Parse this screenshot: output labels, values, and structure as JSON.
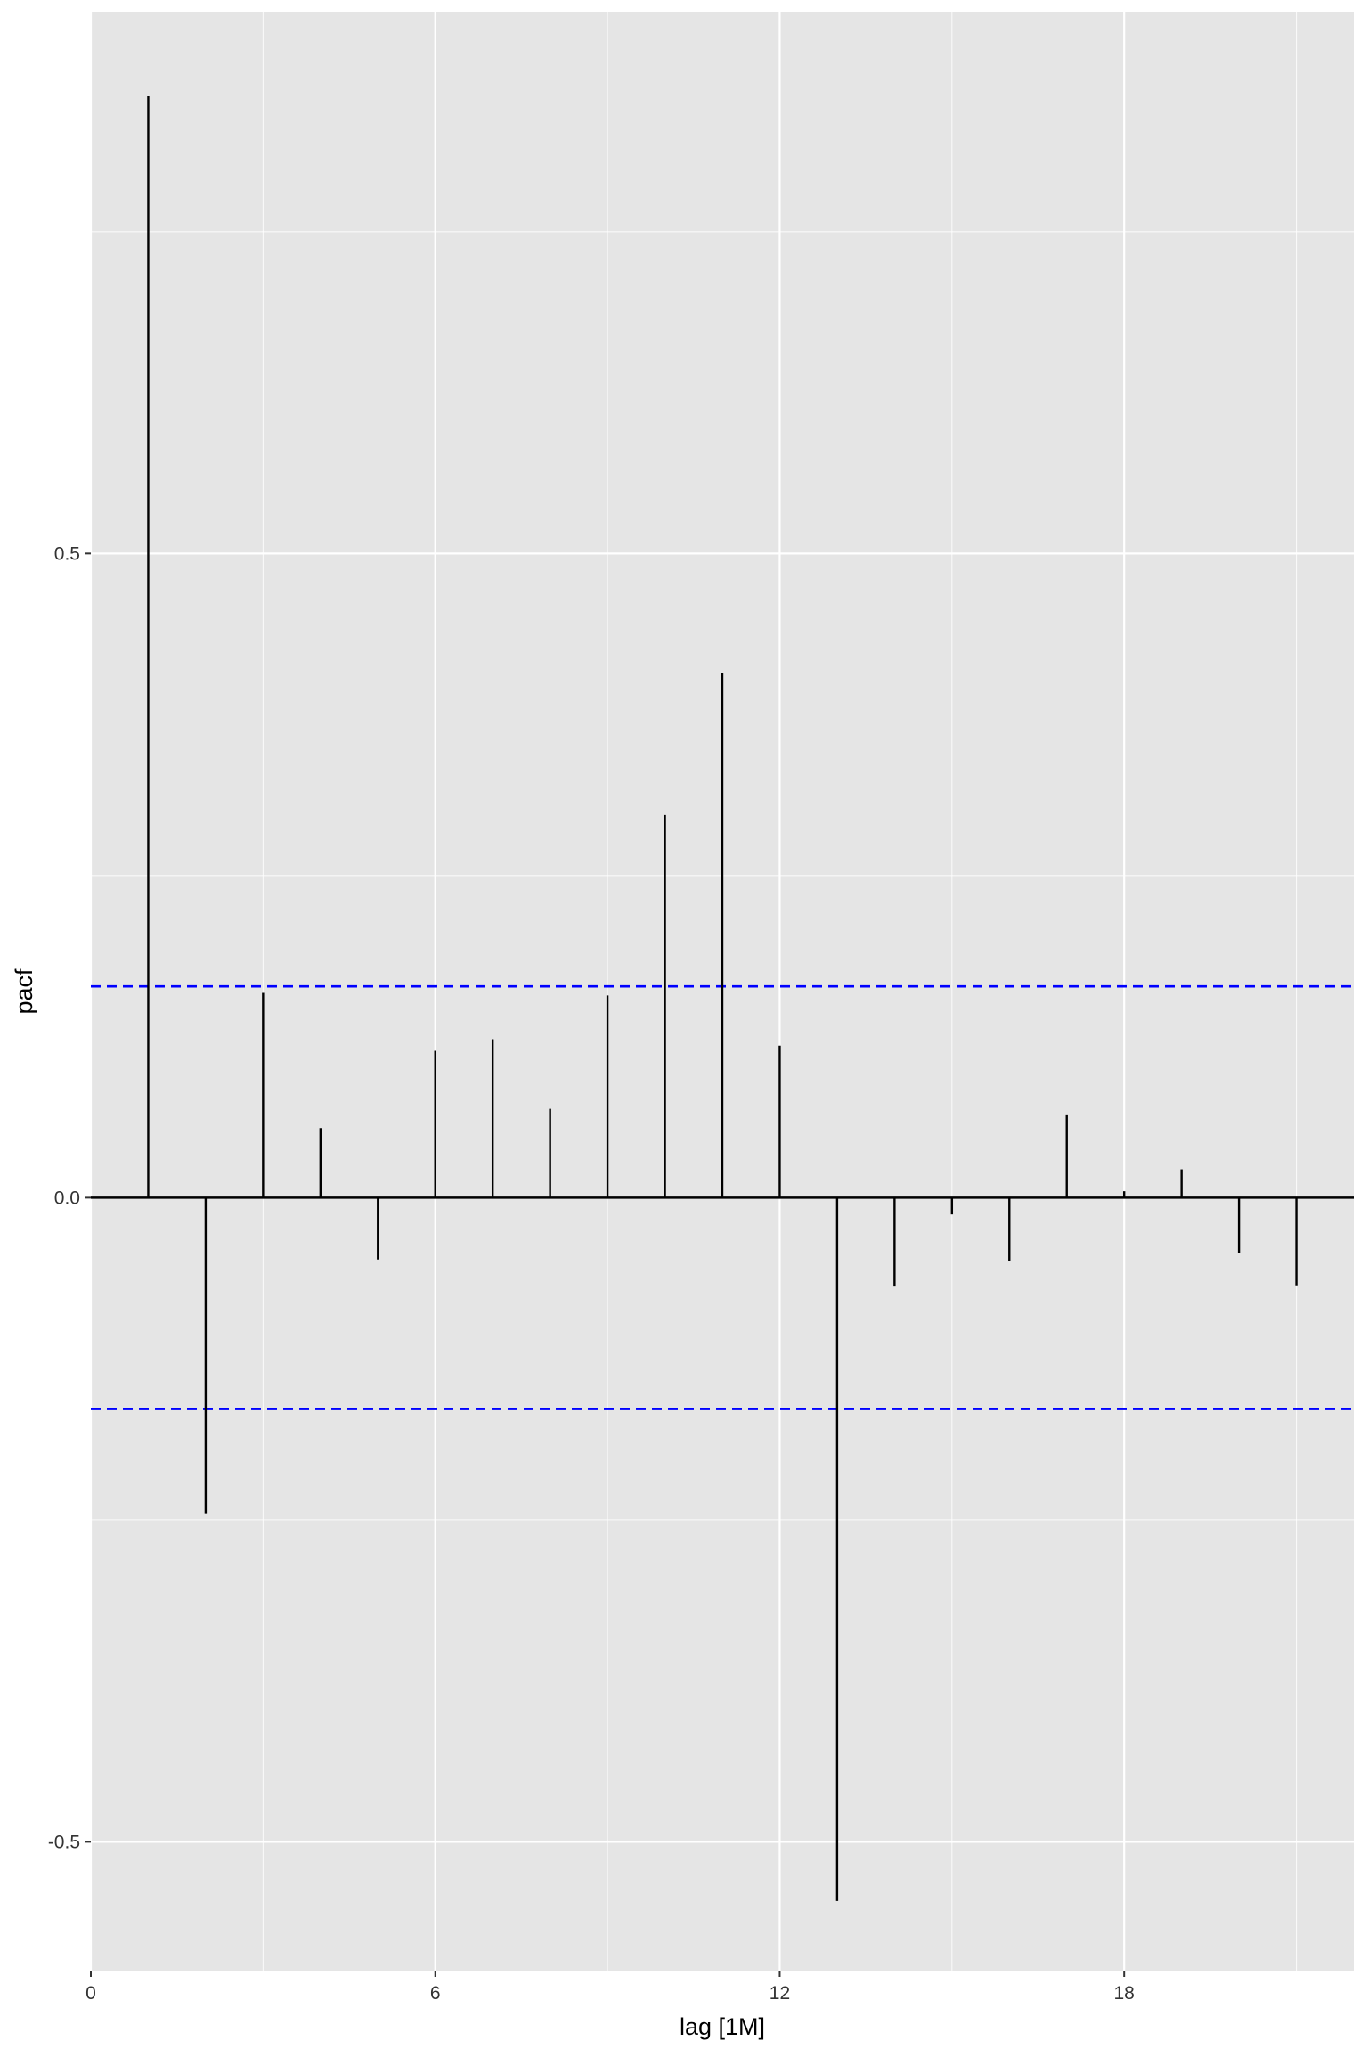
{
  "chart_data": {
    "type": "bar",
    "ylabel": "pacf",
    "xlabel": "lag [1M]",
    "x_ticks": [
      "0",
      "6",
      "12",
      "18"
    ],
    "x_tick_values": [
      0,
      6,
      12,
      18
    ],
    "y_ticks": [
      "-0.5",
      "0.0",
      "0.5"
    ],
    "y_tick_values": [
      -0.5,
      0.0,
      0.5
    ],
    "xlim": [
      0,
      22
    ],
    "ylim": [
      -0.6,
      0.92
    ],
    "lags": [
      1,
      2,
      3,
      4,
      5,
      6,
      7,
      8,
      9,
      10,
      11,
      12,
      13,
      14,
      15,
      16,
      17,
      18,
      19,
      20,
      21
    ],
    "values": [
      0.855,
      -0.245,
      0.159,
      0.054,
      -0.048,
      0.114,
      0.123,
      0.069,
      0.157,
      0.297,
      0.407,
      0.118,
      -0.546,
      -0.069,
      -0.013,
      -0.049,
      0.064,
      0.005,
      0.022,
      -0.043,
      -0.068
    ],
    "confidence_bounds": [
      0.164,
      -0.164
    ],
    "grid": true,
    "colors": {
      "panel_background": "#e5e5e5",
      "grid": "#ffffff",
      "bars": "#000000",
      "zero_line": "#000000",
      "confidence_line": "#0000ff",
      "text": "#333333"
    }
  }
}
